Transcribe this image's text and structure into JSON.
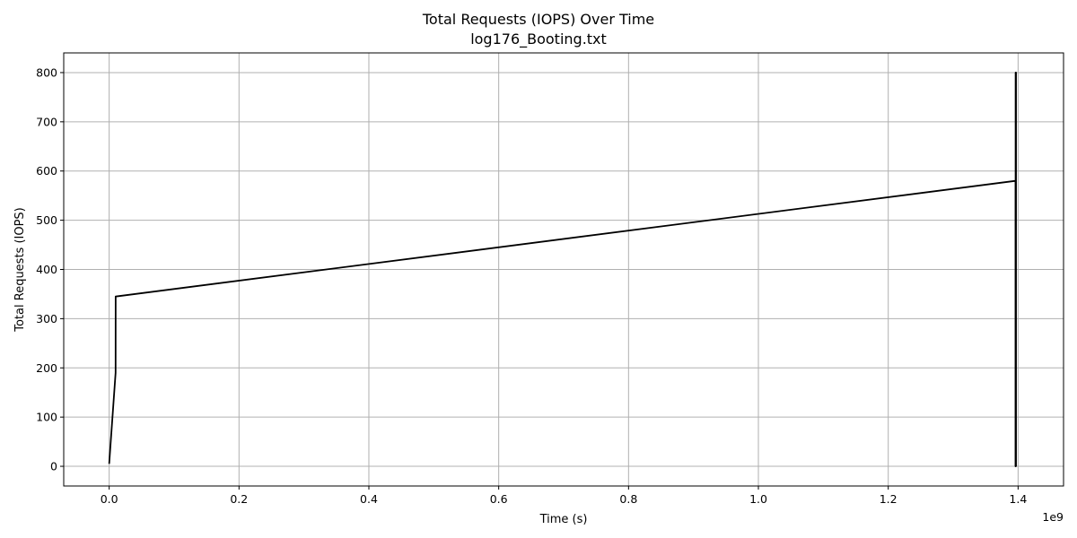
{
  "chart_data": {
    "type": "line",
    "title": "Total Requests (IOPS) Over Time",
    "subtitle": "log176_Booting.txt",
    "xlabel": "Time (s)",
    "ylabel": "Total Requests (IOPS)",
    "x_offset_label": "1e9",
    "xlim": [
      -0.07,
      1.47
    ],
    "ylim": [
      -40,
      840
    ],
    "x_ticks": [
      0.0,
      0.2,
      0.4,
      0.6,
      0.8,
      1.0,
      1.2,
      1.4
    ],
    "x_tick_labels": [
      "0.0",
      "0.2",
      "0.4",
      "0.6",
      "0.8",
      "1.0",
      "1.2",
      "1.4"
    ],
    "y_ticks": [
      0,
      100,
      200,
      300,
      400,
      500,
      600,
      700,
      800
    ],
    "y_tick_labels": [
      "0",
      "100",
      "200",
      "300",
      "400",
      "500",
      "600",
      "700",
      "800"
    ],
    "grid": true,
    "line_color": "#000000",
    "grid_color": "#b0b0b0",
    "series": [
      {
        "x": [
          0.0,
          0.0099,
          0.01,
          1.396,
          1.396,
          1.3962,
          1.3962,
          1.3964,
          1.3964,
          1.3966,
          1.3966,
          1.3968,
          1.3968
        ],
        "y": [
          5,
          190,
          345,
          580,
          0,
          800,
          10,
          790,
          5,
          770,
          0,
          800,
          0
        ]
      }
    ]
  }
}
